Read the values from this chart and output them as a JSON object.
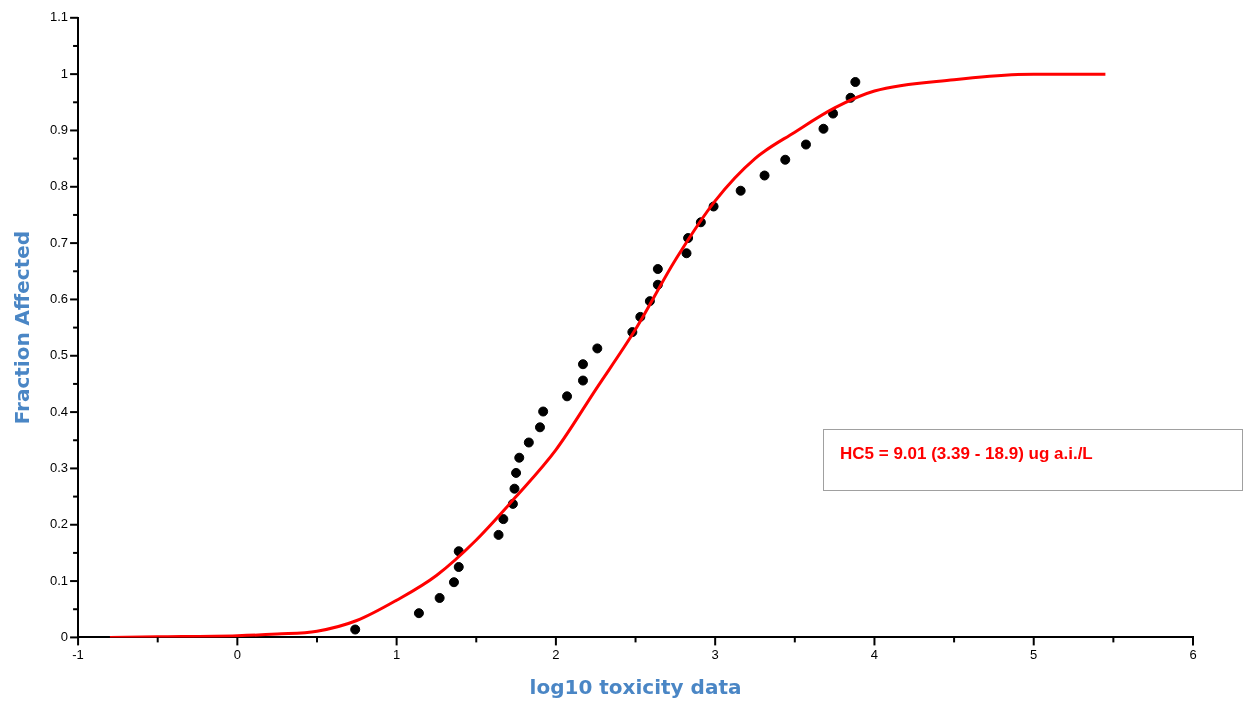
{
  "chart_data": {
    "type": "scatter",
    "xlabel": "log10 toxicity data",
    "ylabel": "Fraction Affected",
    "xlim": [
      -1,
      6
    ],
    "xticks": [
      -1,
      {
        "value": -0.5,
        "label": null
      },
      0,
      {
        "value": 0.5,
        "label": null
      },
      1,
      {
        "value": 1.5,
        "label": null
      },
      2,
      {
        "value": 2.5,
        "label": null
      },
      3,
      {
        "value": 3.5,
        "label": null
      },
      4,
      {
        "value": 4.5,
        "label": null
      },
      5,
      {
        "value": 5.5,
        "label": null
      },
      6
    ],
    "ylim": [
      0,
      1.1
    ],
    "yticks": [
      0,
      {
        "value": 0.05,
        "label": null
      },
      0.1,
      {
        "value": 0.15,
        "label": null
      },
      0.2,
      {
        "value": 0.25,
        "label": null
      },
      0.3,
      {
        "value": 0.35,
        "label": null
      },
      0.4,
      {
        "value": 0.45,
        "label": null
      },
      0.5,
      {
        "value": 0.55,
        "label": null
      },
      0.6,
      {
        "value": 0.65,
        "label": null
      },
      0.7,
      {
        "value": 0.75,
        "label": null
      },
      0.8,
      {
        "value": 0.85,
        "label": null
      },
      0.9,
      {
        "value": 0.95,
        "label": null
      },
      1,
      {
        "value": 1.05,
        "label": null
      },
      1.1
    ],
    "grid": false,
    "legend": false,
    "annotations": [
      "HC5 = 9.01 (3.39 - 18.9) ug a.i./L"
    ],
    "series": [
      {
        "type": "line",
        "color": "#ff0000",
        "marker": "none",
        "line_style": "solid",
        "x": [
          -0.8,
          -0.5,
          0,
          0.25,
          0.5,
          0.75,
          1,
          1.25,
          1.5,
          1.75,
          2,
          2.25,
          2.5,
          2.75,
          3,
          3.25,
          3.5,
          3.75,
          4,
          4.5,
          5,
          5.45
        ],
        "values": [
          0.0,
          0.001,
          0.003,
          0.006,
          0.011,
          0.03,
          0.066,
          0.11,
          0.173,
          0.25,
          0.333,
          0.44,
          0.547,
          0.67,
          0.775,
          0.85,
          0.897,
          0.94,
          0.97,
          0.99,
          1.0,
          1.0
        ]
      },
      {
        "color": "#000000",
        "marker": "circle",
        "x": [
          0.74,
          1.14,
          1.27,
          1.36,
          1.39,
          1.39,
          1.64,
          1.67,
          1.73,
          1.74,
          1.75,
          1.77,
          1.83,
          1.9,
          1.92,
          2.07,
          2.17,
          2.17,
          2.26,
          2.48,
          2.53,
          2.59,
          2.64,
          2.64,
          2.82,
          2.83,
          2.91,
          2.99,
          3.16,
          3.31,
          3.44,
          3.57,
          3.68,
          3.74,
          3.85,
          3.88
        ],
        "values": [
          0.014,
          0.043,
          0.07,
          0.098,
          0.125,
          0.153,
          0.182,
          0.21,
          0.237,
          0.264,
          0.292,
          0.319,
          0.346,
          0.373,
          0.401,
          0.428,
          0.456,
          0.485,
          0.513,
          0.542,
          0.569,
          0.597,
          0.626,
          0.654,
          0.682,
          0.709,
          0.737,
          0.765,
          0.793,
          0.82,
          0.848,
          0.875,
          0.903,
          0.93,
          0.958,
          0.986
        ]
      }
    ]
  }
}
